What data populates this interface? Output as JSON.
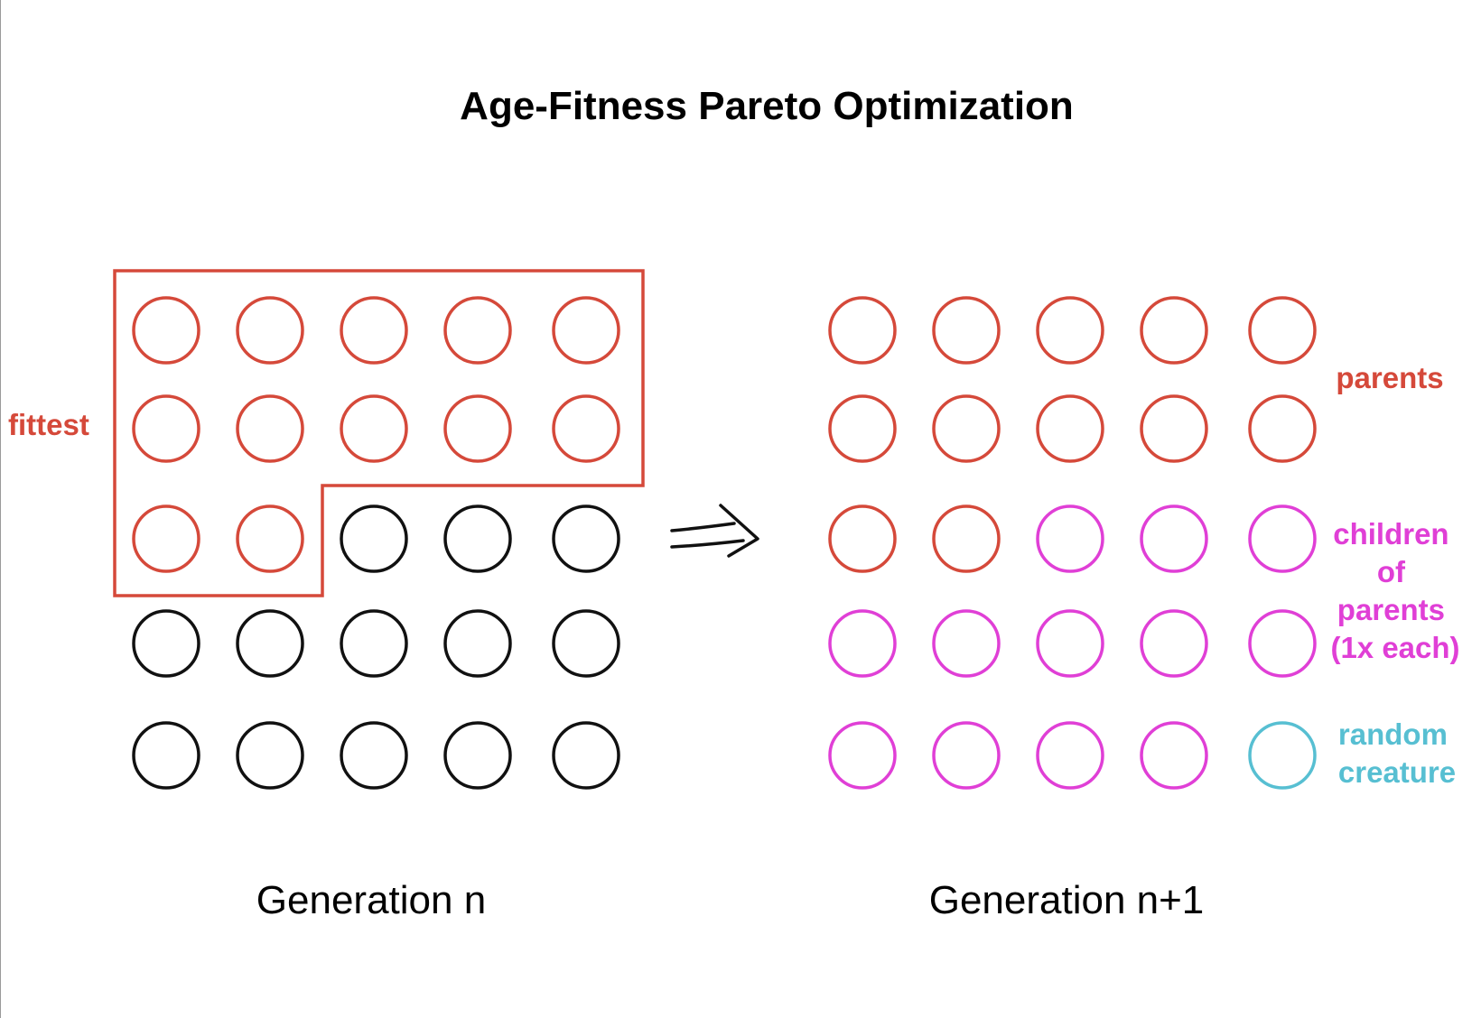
{
  "title": "Age-Fitness Pareto Optimization",
  "colors": {
    "fittest": "#d5493a",
    "other": "#111111",
    "parents": "#d5493a",
    "children": "#e03fd6",
    "random": "#57bfd2"
  },
  "left_panel": {
    "caption": "Generation n",
    "box_label": "fittest",
    "grid": [
      [
        "fittest",
        "fittest",
        "fittest",
        "fittest",
        "fittest"
      ],
      [
        "fittest",
        "fittest",
        "fittest",
        "fittest",
        "fittest"
      ],
      [
        "fittest",
        "fittest",
        "other",
        "other",
        "other"
      ],
      [
        "other",
        "other",
        "other",
        "other",
        "other"
      ],
      [
        "other",
        "other",
        "other",
        "other",
        "other"
      ]
    ]
  },
  "right_panel": {
    "caption": "Generation n+1",
    "grid": [
      [
        "parents",
        "parents",
        "parents",
        "parents",
        "parents"
      ],
      [
        "parents",
        "parents",
        "parents",
        "parents",
        "parents"
      ],
      [
        "parents",
        "parents",
        "children",
        "children",
        "children"
      ],
      [
        "children",
        "children",
        "children",
        "children",
        "children"
      ],
      [
        "children",
        "children",
        "children",
        "children",
        "random"
      ]
    ],
    "legend": {
      "parents": [
        "parents"
      ],
      "children": [
        "children",
        "of",
        "parents",
        "(1x each)"
      ],
      "random": [
        "random",
        "creature"
      ]
    }
  },
  "arrow_icon": "double-arrow-right-icon"
}
